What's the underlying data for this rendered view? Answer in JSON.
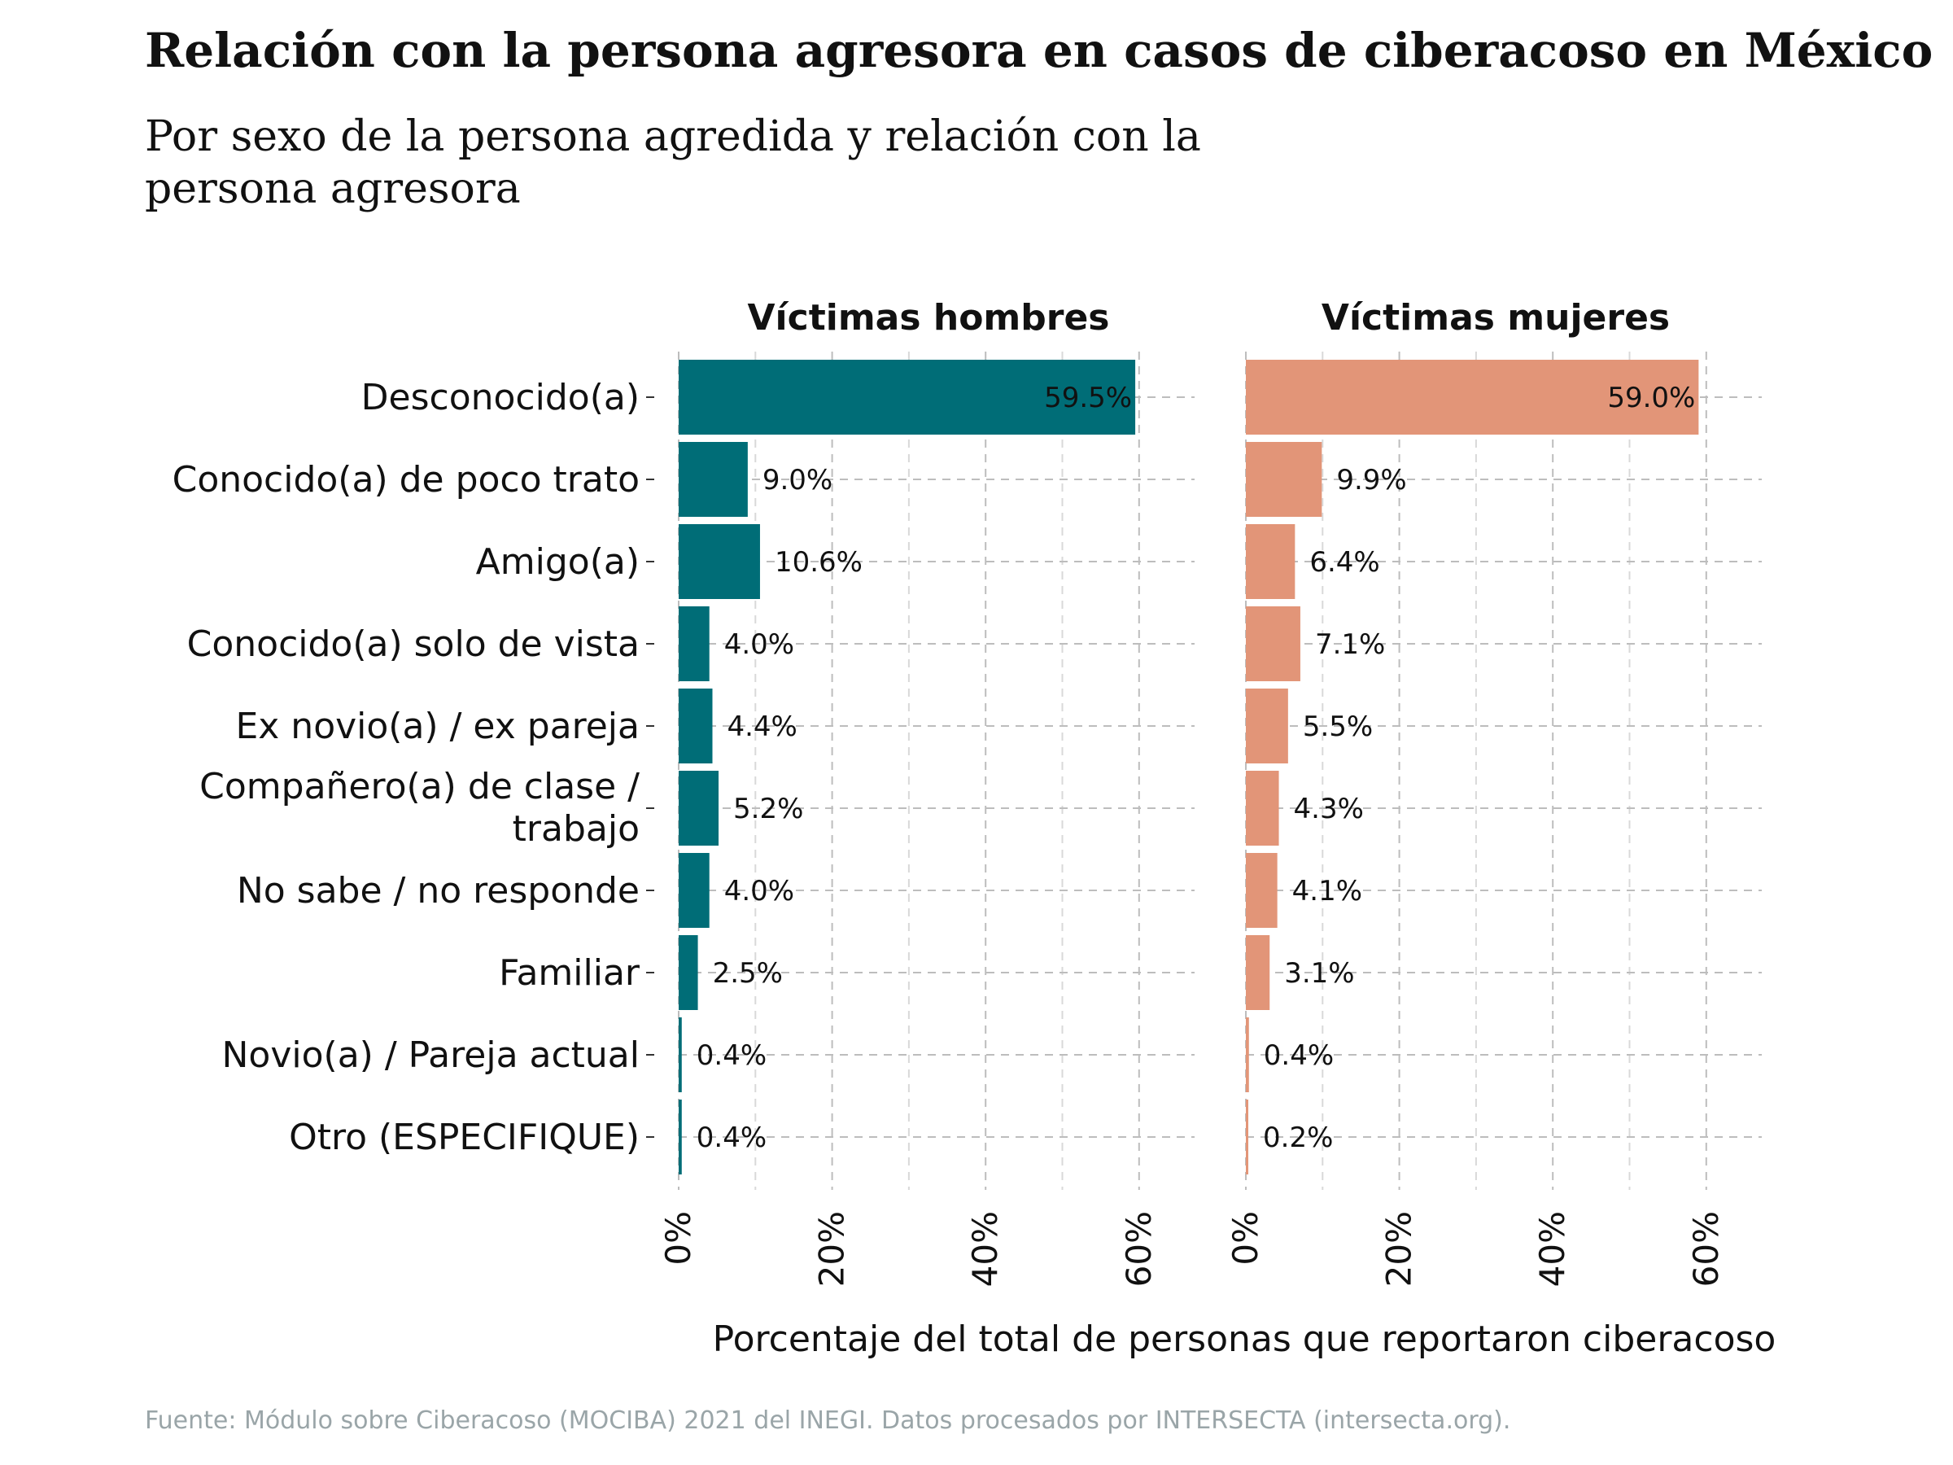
{
  "title": "Relación con la persona agresora en casos de ciberacoso en México",
  "subtitle": "Por sexo de la persona agredida y relación con la persona agresora",
  "caption": "Fuente: Módulo sobre Ciberacoso (MOCIBA) 2021 del INEGI. Datos procesados por INTERSECTA (intersecta.org).",
  "chart_data": {
    "type": "bar",
    "orientation": "horizontal",
    "xlabel": "Porcentaje del total de personas que reportaron ciberacoso",
    "xlim": [
      0,
      65
    ],
    "xticks": [
      "0%",
      "20%",
      "40%",
      "60%"
    ],
    "grid": true,
    "categories": [
      "Desconocido(a)",
      "Conocido(a) de poco trato",
      "Amigo(a)",
      "Conocido(a) solo de vista",
      "Ex novio(a) / ex pareja",
      "Compañero(a) de clase / trabajo",
      "No sabe / no responde",
      "Familiar",
      "Novio(a) / Pareja actual",
      "Otro (ESPECIFIQUE)"
    ],
    "panels": [
      {
        "name": "Víctimas hombres",
        "color": "#006d77",
        "values": [
          59.5,
          9.0,
          10.6,
          4.0,
          4.4,
          5.2,
          4.0,
          2.5,
          0.4,
          0.4
        ],
        "labels": [
          "59.5%",
          "9.0%",
          "10.6%",
          "4.0%",
          "4.4%",
          "5.2%",
          "4.0%",
          "2.5%",
          "0.4%",
          "0.4%"
        ]
      },
      {
        "name": "Víctimas mujeres",
        "color": "#e29578",
        "values": [
          59.0,
          9.9,
          6.4,
          7.1,
          5.5,
          4.3,
          4.1,
          3.1,
          0.4,
          0.2
        ],
        "labels": [
          "59.0%",
          "9.9%",
          "6.4%",
          "7.1%",
          "5.5%",
          "4.3%",
          "4.1%",
          "3.1%",
          "0.4%",
          "0.2%"
        ]
      }
    ]
  }
}
